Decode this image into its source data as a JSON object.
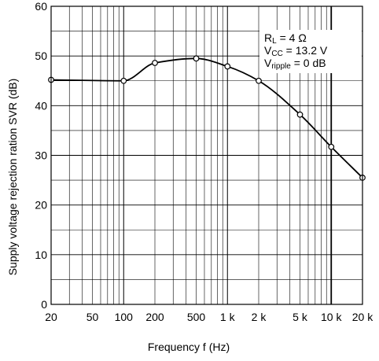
{
  "chart_data": {
    "type": "line",
    "xlabel": "Frequency  f (Hz)",
    "ylabel": "Supply voltage rejection ration SVR (dB)",
    "x_scale": "log",
    "xlim": [
      20,
      20000
    ],
    "ylim": [
      0,
      60
    ],
    "grid": true,
    "x_ticks": [
      {
        "value": 20,
        "label": "20"
      },
      {
        "value": 50,
        "label": "50"
      },
      {
        "value": 100,
        "label": "100"
      },
      {
        "value": 200,
        "label": "200"
      },
      {
        "value": 500,
        "label": "500"
      },
      {
        "value": 1000,
        "label": "1 k"
      },
      {
        "value": 2000,
        "label": "2 k"
      },
      {
        "value": 5000,
        "label": "5 k"
      },
      {
        "value": 10000,
        "label": "10 k"
      },
      {
        "value": 20000,
        "label": "20 k"
      }
    ],
    "y_ticks": [
      {
        "value": 0,
        "label": "0"
      },
      {
        "value": 10,
        "label": "10"
      },
      {
        "value": 20,
        "label": "20"
      },
      {
        "value": 30,
        "label": "30"
      },
      {
        "value": 40,
        "label": "40"
      },
      {
        "value": 50,
        "label": "50"
      },
      {
        "value": 60,
        "label": "60"
      }
    ],
    "legend": {
      "placement": "top-right",
      "lines": [
        {
          "main": "R",
          "sub": "L",
          "rest": " = 4 Ω"
        },
        {
          "main": "V",
          "sub": "CC",
          "rest": " = 13.2 V"
        },
        {
          "main": "V",
          "sub": "ripple",
          "rest": " = 0 dB"
        }
      ]
    },
    "series": [
      {
        "x": [
          20,
          100,
          200,
          500,
          1000,
          2000,
          5000,
          10000,
          20000
        ],
        "y": [
          45.2,
          45.0,
          48.6,
          49.5,
          47.9,
          45.0,
          38.2,
          31.7,
          25.5
        ]
      }
    ]
  }
}
